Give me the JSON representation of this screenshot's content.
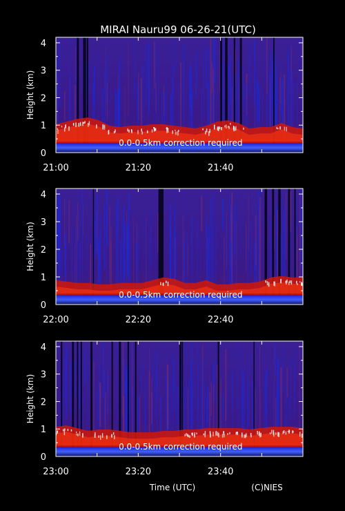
{
  "title": "MIRAI Nauru99 06-26-21(UTC)",
  "footer": {
    "xlabel": "Time (UTC)",
    "credit": "(C)NIES"
  },
  "colors": {
    "background": "#000000",
    "axes": "#ffffff",
    "field": "#3a1a8c",
    "noise_blue": "#1a2ad8",
    "boundary_red": "#d01808",
    "cloud_white": "#ffffff",
    "surface_blue": "#2030ff"
  },
  "chart_data": [
    {
      "type": "heatmap",
      "ylabel": "Height (km)",
      "ylim": [
        0,
        4.2
      ],
      "yticks": [
        0,
        1,
        2,
        3,
        4
      ],
      "xlim": [
        "21:00",
        "22:00"
      ],
      "xticks": [
        "21:00",
        "21:20",
        "21:40"
      ],
      "annotation": "0.0-0.5km correction required",
      "cloud_base_km": [
        0.85,
        0.95,
        1.05,
        1.1,
        1.0,
        0.8,
        0.75,
        0.8,
        0.8,
        0.85,
        0.85,
        0.8,
        0.75,
        0.7,
        0.8,
        0.95,
        1.0,
        0.9,
        0.7,
        0.75,
        0.75,
        0.9,
        0.75,
        0.7
      ]
    },
    {
      "type": "heatmap",
      "ylabel": "Height (km)",
      "ylim": [
        0,
        4.2
      ],
      "yticks": [
        0,
        1,
        2,
        3,
        4
      ],
      "xlim": [
        "22:00",
        "23:00"
      ],
      "xticks": [
        "22:00",
        "22:20",
        "22:40"
      ],
      "annotation": "0.0-0.5km correction required",
      "cloud_base_km": [
        0.7,
        0.65,
        0.6,
        0.6,
        0.55,
        0.55,
        0.6,
        0.6,
        0.6,
        0.7,
        0.8,
        0.75,
        0.6,
        0.6,
        0.7,
        0.55,
        0.55,
        0.6,
        0.6,
        0.65,
        0.8,
        0.85,
        0.8,
        0.8
      ]
    },
    {
      "type": "heatmap",
      "ylabel": "Height (km)",
      "ylim": [
        0,
        4.2
      ],
      "yticks": [
        0,
        1,
        2,
        3,
        4
      ],
      "xlim": [
        "23:00",
        "24:00"
      ],
      "xticks": [
        "23:00",
        "23:20",
        "23:40"
      ],
      "annotation": "0.0-0.5km correction required",
      "cloud_base_km": [
        0.9,
        0.95,
        0.85,
        0.75,
        0.8,
        0.8,
        0.75,
        0.7,
        0.7,
        0.7,
        0.75,
        0.75,
        0.8,
        0.8,
        0.85,
        0.85,
        0.85,
        0.85,
        0.8,
        0.85,
        0.9,
        0.9,
        0.9,
        0.85
      ]
    }
  ]
}
